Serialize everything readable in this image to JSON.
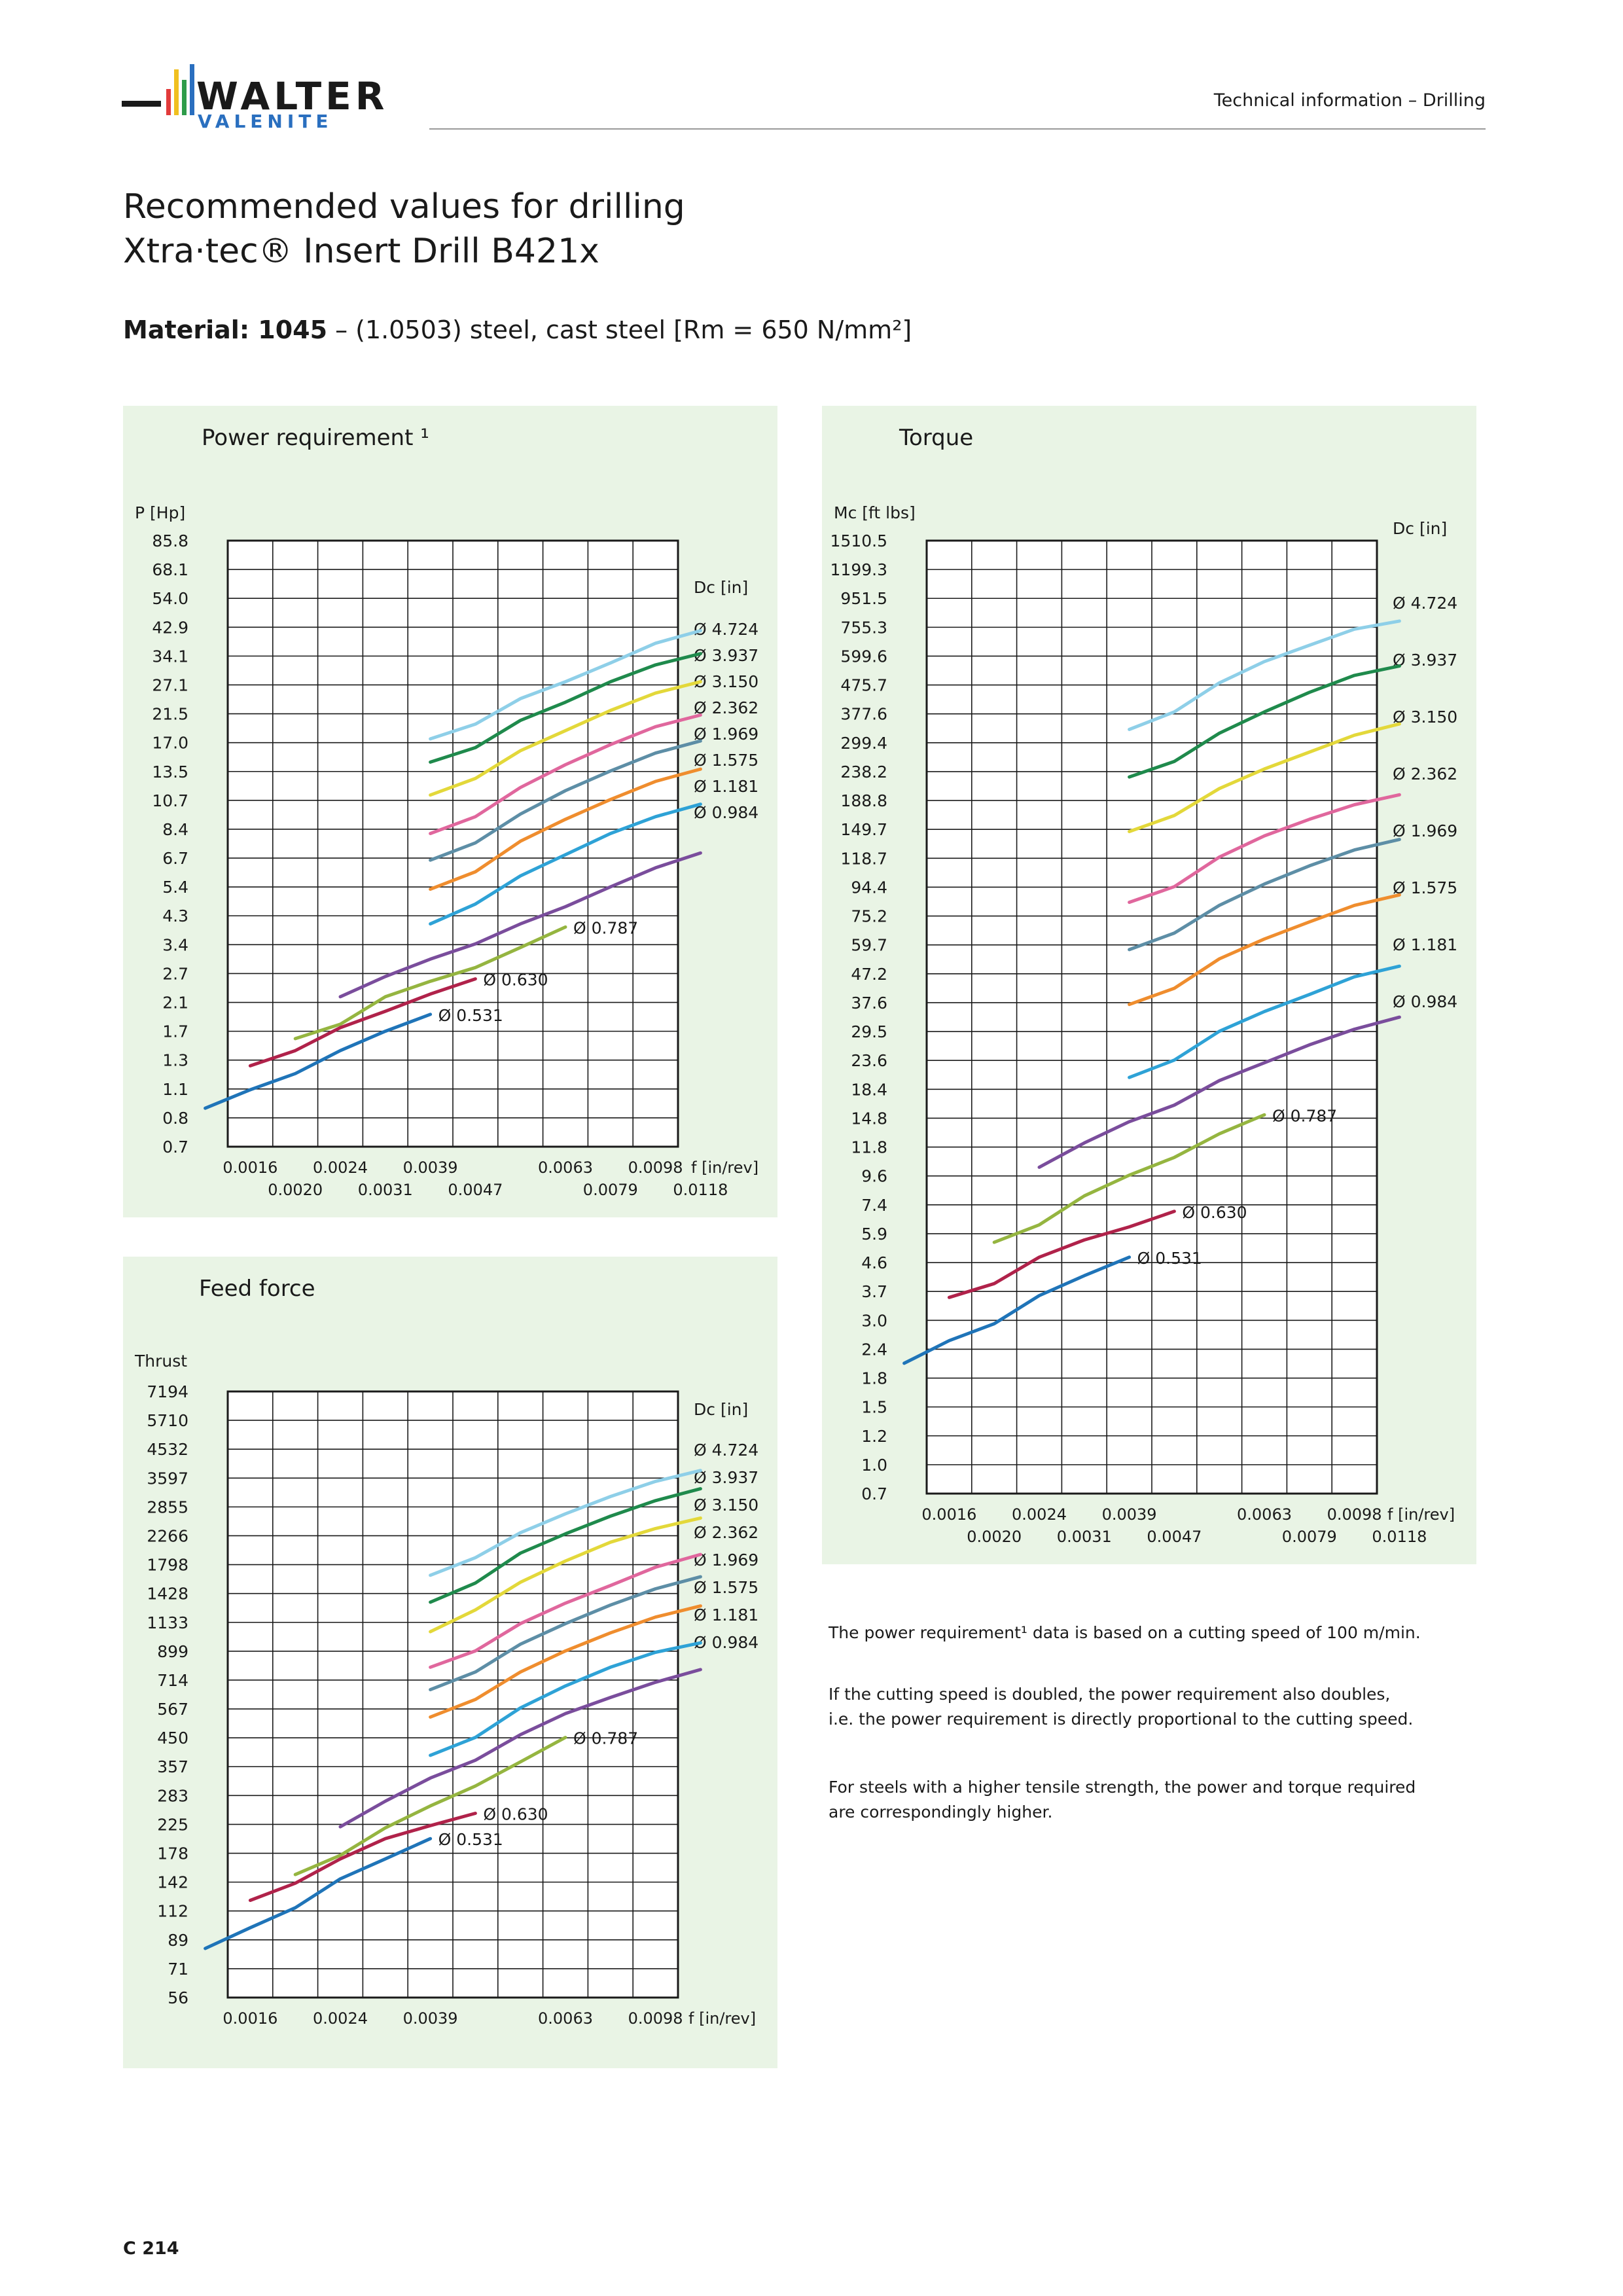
{
  "header": {
    "logo_primary": "WALTER",
    "logo_secondary": "VALENITE",
    "section_label": "Technical information – Drilling"
  },
  "title": {
    "line1": "Recommended values for drilling",
    "line2": "Xtra·tec® Insert Drill B421x"
  },
  "material": {
    "label": "Material: 1045",
    "description": " – (1.0503) steel, cast steel [Rm = 650 N/mm²]"
  },
  "colors": {
    "panel_background": "#e9f4e5",
    "logo_blue": "#2a6fbf",
    "d4724": "#8ecfe8",
    "d3937": "#1f8a4c",
    "d3150": "#e3d83a",
    "d2362": "#e0679d",
    "d1969": "#5d8ea6",
    "d1575": "#ef8d2e",
    "d1181": "#2ea2d6",
    "d0984": "#7a4d9c",
    "d0787": "#95b540",
    "d0630": "#b0224a",
    "d0531": "#1f74b8"
  },
  "chart_data": [
    {
      "type": "line",
      "title": "Power requirement ¹",
      "ylabel": "P [Hp]",
      "xlabel": "f [in/rev]",
      "legend_title": "Dc [in]",
      "y_scale": "log",
      "y_ticks": [
        "85.8",
        "68.1",
        "54.0",
        "42.9",
        "34.1",
        "27.1",
        "21.5",
        "17.0",
        "13.5",
        "10.7",
        "8.4",
        "6.7",
        "5.4",
        "4.3",
        "3.4",
        "2.7",
        "2.1",
        "1.7",
        "1.3",
        "1.1",
        "0.8",
        "0.7"
      ],
      "x_ticks_top": [
        "0.0016",
        "0.0024",
        "0.0039",
        "0.0063",
        "0.0098"
      ],
      "x_ticks_bottom": [
        "0.0020",
        "0.0031",
        "0.0047",
        "0.0079",
        "0.0118"
      ],
      "legend": [
        "Ø 4.724",
        "Ø 3.937",
        "Ø 3.150",
        "Ø 2.362",
        "Ø 1.969",
        "Ø 1.575",
        "Ø 1.181",
        "Ø 0.984"
      ],
      "series": [
        {
          "name": "Ø 4.724",
          "color_key": "d4724",
          "x": [
            "0.0039",
            "0.0047",
            "0.0055",
            "0.0063",
            "0.0079",
            "0.0098",
            "0.0118"
          ],
          "y": [
            17.8,
            20.0,
            24.5,
            28.0,
            32.5,
            38.0,
            42.0
          ]
        },
        {
          "name": "Ø 3.937",
          "color_key": "d3937",
          "x": [
            "0.0039",
            "0.0047",
            "0.0055",
            "0.0063",
            "0.0079",
            "0.0098",
            "0.0118"
          ],
          "y": [
            14.8,
            16.6,
            20.6,
            23.8,
            28.0,
            32.0,
            35.0
          ]
        },
        {
          "name": "Ø 3.150",
          "color_key": "d3150",
          "x": [
            "0.0039",
            "0.0047",
            "0.0055",
            "0.0063",
            "0.0079",
            "0.0098",
            "0.0118"
          ],
          "y": [
            11.4,
            13.0,
            16.2,
            19.0,
            22.3,
            25.6,
            28.0
          ]
        },
        {
          "name": "Ø 2.362",
          "color_key": "d2362",
          "x": [
            "0.0039",
            "0.0047",
            "0.0055",
            "0.0063",
            "0.0079",
            "0.0098",
            "0.0118"
          ],
          "y": [
            8.4,
            9.6,
            12.1,
            14.5,
            17.0,
            19.6,
            21.5
          ]
        },
        {
          "name": "Ø 1.969",
          "color_key": "d1969",
          "x": [
            "0.0039",
            "0.0047",
            "0.0055",
            "0.0063",
            "0.0079",
            "0.0098",
            "0.0118"
          ],
          "y": [
            6.8,
            7.8,
            9.8,
            11.8,
            13.8,
            15.9,
            17.5
          ]
        },
        {
          "name": "Ø 1.575",
          "color_key": "d1575",
          "x": [
            "0.0039",
            "0.0047",
            "0.0055",
            "0.0063",
            "0.0079",
            "0.0098",
            "0.0118"
          ],
          "y": [
            5.4,
            6.2,
            7.9,
            9.4,
            11.0,
            12.7,
            14.0
          ]
        },
        {
          "name": "Ø 1.181",
          "color_key": "d1181",
          "x": [
            "0.0039",
            "0.0047",
            "0.0055",
            "0.0063",
            "0.0079",
            "0.0098",
            "0.0118"
          ],
          "y": [
            4.1,
            4.8,
            6.0,
            7.1,
            8.4,
            9.6,
            10.6
          ]
        },
        {
          "name": "Ø 0.984",
          "color_key": "d0984",
          "x": [
            "0.0024",
            "0.0031",
            "0.0039",
            "0.0047",
            "0.0055",
            "0.0063",
            "0.0079",
            "0.0098",
            "0.0118"
          ],
          "y": [
            2.3,
            2.7,
            3.1,
            3.5,
            4.1,
            4.7,
            5.5,
            6.4,
            7.2
          ]
        },
        {
          "name": "Ø 0.787",
          "color_key": "d0787",
          "x": [
            "0.0020",
            "0.0024",
            "0.0031",
            "0.0039",
            "0.0047",
            "0.0055",
            "0.0063"
          ],
          "y": [
            1.65,
            1.85,
            2.3,
            2.6,
            2.9,
            3.4,
            4.0
          ]
        },
        {
          "name": "Ø 0.630",
          "color_key": "d0630",
          "x": [
            "0.0016",
            "0.0020",
            "0.0024",
            "0.0031",
            "0.0039",
            "0.0047"
          ],
          "y": [
            1.33,
            1.5,
            1.8,
            2.05,
            2.35,
            2.65
          ]
        },
        {
          "name": "Ø 0.531",
          "color_key": "d0531",
          "x": [
            "0.0012",
            "0.0016",
            "0.0020",
            "0.0024",
            "0.0031",
            "0.0039"
          ],
          "y": [
            0.95,
            1.1,
            1.25,
            1.5,
            1.75,
            2.0
          ]
        }
      ]
    },
    {
      "type": "line",
      "title": "Torque",
      "ylabel": "Mc [ft lbs]",
      "xlabel": "f [in/rev]",
      "legend_title": "Dc [in]",
      "y_scale": "log",
      "y_ticks": [
        "1510.5",
        "1199.3",
        "951.5",
        "755.3",
        "599.6",
        "475.7",
        "377.6",
        "299.4",
        "238.2",
        "188.8",
        "149.7",
        "118.7",
        "94.4",
        "75.2",
        "59.7",
        "47.2",
        "37.6",
        "29.5",
        "23.6",
        "18.4",
        "14.8",
        "11.8",
        "9.6",
        "7.4",
        "5.9",
        "4.6",
        "3.7",
        "3.0",
        "2.4",
        "1.8",
        "1.5",
        "1.2",
        "1.0",
        "0.7"
      ],
      "x_ticks_top": [
        "0.0016",
        "0.0024",
        "0.0039",
        "0.0063",
        "0.0098"
      ],
      "x_ticks_bottom": [
        "0.0020",
        "0.0031",
        "0.0047",
        "0.0079",
        "0.0118"
      ],
      "legend": [
        "Ø 4.724",
        "Ø 3.937",
        "Ø 3.150",
        "Ø 2.362",
        "Ø 1.969",
        "Ø 1.575",
        "Ø 1.181",
        "Ø 0.984"
      ],
      "series": [
        {
          "name": "Ø 4.724",
          "color_key": "d4724",
          "x": [
            "0.0039",
            "0.0047",
            "0.0055",
            "0.0063",
            "0.0079",
            "0.0098",
            "0.0118"
          ],
          "y": [
            330,
            380,
            480,
            570,
            650,
            740,
            790
          ]
        },
        {
          "name": "Ø 3.937",
          "color_key": "d3937",
          "x": [
            "0.0039",
            "0.0047",
            "0.0055",
            "0.0063",
            "0.0079",
            "0.0098",
            "0.0118"
          ],
          "y": [
            225,
            255,
            320,
            380,
            445,
            510,
            550
          ]
        },
        {
          "name": "Ø 3.150",
          "color_key": "d3150",
          "x": [
            "0.0039",
            "0.0047",
            "0.0055",
            "0.0063",
            "0.0079",
            "0.0098",
            "0.0118"
          ],
          "y": [
            145,
            165,
            205,
            240,
            275,
            315,
            345
          ]
        },
        {
          "name": "Ø 2.362",
          "color_key": "d2362",
          "x": [
            "0.0039",
            "0.0047",
            "0.0055",
            "0.0063",
            "0.0079",
            "0.0098",
            "0.0118"
          ],
          "y": [
            82,
            93,
            118,
            140,
            160,
            180,
            195
          ]
        },
        {
          "name": "Ø 1.969",
          "color_key": "d1969",
          "x": [
            "0.0039",
            "0.0047",
            "0.0055",
            "0.0063",
            "0.0079",
            "0.0098",
            "0.0118"
          ],
          "y": [
            56,
            64,
            80,
            95,
            110,
            125,
            136
          ]
        },
        {
          "name": "Ø 1.575",
          "color_key": "d1575",
          "x": [
            "0.0039",
            "0.0047",
            "0.0055",
            "0.0063",
            "0.0079",
            "0.0098",
            "0.0118"
          ],
          "y": [
            36,
            41,
            52,
            61,
            70,
            80,
            87
          ]
        },
        {
          "name": "Ø 1.181",
          "color_key": "d1181",
          "x": [
            "0.0039",
            "0.0047",
            "0.0055",
            "0.0063",
            "0.0079",
            "0.0098",
            "0.0118"
          ],
          "y": [
            20,
            23,
            29,
            34,
            39,
            45,
            49
          ]
        },
        {
          "name": "Ø 0.984",
          "color_key": "d0984",
          "x": [
            "0.0024",
            "0.0031",
            "0.0039",
            "0.0047",
            "0.0055",
            "0.0063",
            "0.0079",
            "0.0098",
            "0.0118"
          ],
          "y": [
            9.7,
            11.8,
            14.0,
            16.0,
            19.5,
            22.5,
            26.0,
            29.5,
            32.5
          ]
        },
        {
          "name": "Ø 0.787",
          "color_key": "d0787",
          "x": [
            "0.0020",
            "0.0024",
            "0.0031",
            "0.0039",
            "0.0047",
            "0.0055",
            "0.0063"
          ],
          "y": [
            5.3,
            6.1,
            7.7,
            9.1,
            10.5,
            12.7,
            14.8
          ]
        },
        {
          "name": "Ø 0.630",
          "color_key": "d0630",
          "x": [
            "0.0016",
            "0.0020",
            "0.0024",
            "0.0031",
            "0.0039",
            "0.0047"
          ],
          "y": [
            3.4,
            3.8,
            4.7,
            5.4,
            6.0,
            6.8
          ]
        },
        {
          "name": "Ø 0.531",
          "color_key": "d0531",
          "x": [
            "0.0012",
            "0.0016",
            "0.0020",
            "0.0024",
            "0.0031",
            "0.0039"
          ],
          "y": [
            2.0,
            2.4,
            2.75,
            3.45,
            4.05,
            4.7
          ]
        }
      ]
    },
    {
      "type": "line",
      "title": "Feed force",
      "ylabel": "Thrust",
      "xlabel": "f [in/rev]",
      "legend_title": "Dc [in]",
      "y_scale": "log",
      "y_ticks": [
        "7194",
        "5710",
        "4532",
        "3597",
        "2855",
        "2266",
        "1798",
        "1428",
        "1133",
        "899",
        "714",
        "567",
        "450",
        "357",
        "283",
        "225",
        "178",
        "142",
        "112",
        "89",
        "71",
        "56"
      ],
      "x_ticks_top": [
        "0.0016",
        "0.0024",
        "0.0039",
        "0.0063",
        "0.0098"
      ],
      "x_ticks_bottom": [],
      "legend": [
        "Ø 4.724",
        "Ø 3.937",
        "Ø 3.150",
        "Ø 2.362",
        "Ø 1.969",
        "Ø 1.575",
        "Ø 1.181",
        "Ø 0.984"
      ],
      "series": [
        {
          "name": "Ø 4.724",
          "color_key": "d4724",
          "x": [
            "0.0039",
            "0.0047",
            "0.0055",
            "0.0063",
            "0.0079",
            "0.0098",
            "0.0118"
          ],
          "y": [
            1650,
            1900,
            2320,
            2700,
            3100,
            3500,
            3820
          ]
        },
        {
          "name": "Ø 3.937",
          "color_key": "d3937",
          "x": [
            "0.0039",
            "0.0047",
            "0.0055",
            "0.0063",
            "0.0079",
            "0.0098",
            "0.0118"
          ],
          "y": [
            1330,
            1550,
            1970,
            2300,
            2650,
            3000,
            3300
          ]
        },
        {
          "name": "Ø 3.150",
          "color_key": "d3150",
          "x": [
            "0.0039",
            "0.0047",
            "0.0055",
            "0.0063",
            "0.0079",
            "0.0098",
            "0.0118"
          ],
          "y": [
            1050,
            1250,
            1560,
            1850,
            2150,
            2400,
            2610
          ]
        },
        {
          "name": "Ø 2.362",
          "color_key": "d2362",
          "x": [
            "0.0039",
            "0.0047",
            "0.0055",
            "0.0063",
            "0.0079",
            "0.0098",
            "0.0118"
          ],
          "y": [
            790,
            900,
            1120,
            1320,
            1520,
            1760,
            1950
          ]
        },
        {
          "name": "Ø 1.969",
          "color_key": "d1969",
          "x": [
            "0.0039",
            "0.0047",
            "0.0055",
            "0.0063",
            "0.0079",
            "0.0098",
            "0.0118"
          ],
          "y": [
            660,
            760,
            950,
            1120,
            1300,
            1480,
            1630
          ]
        },
        {
          "name": "Ø 1.575",
          "color_key": "d1575",
          "x": [
            "0.0039",
            "0.0047",
            "0.0055",
            "0.0063",
            "0.0079",
            "0.0098",
            "0.0118"
          ],
          "y": [
            530,
            610,
            760,
            900,
            1040,
            1180,
            1290
          ]
        },
        {
          "name": "Ø 1.181",
          "color_key": "d1181",
          "x": [
            "0.0039",
            "0.0047",
            "0.0055",
            "0.0063",
            "0.0079",
            "0.0098",
            "0.0118"
          ],
          "y": [
            390,
            450,
            570,
            680,
            790,
            890,
            960
          ]
        },
        {
          "name": "Ø 0.984",
          "color_key": "d0984",
          "x": [
            "0.0024",
            "0.0031",
            "0.0039",
            "0.0047",
            "0.0055",
            "0.0063",
            "0.0079",
            "0.0098",
            "0.0118"
          ],
          "y": [
            220,
            270,
            325,
            375,
            460,
            545,
            620,
            700,
            775
          ]
        },
        {
          "name": "Ø 0.787",
          "color_key": "d0787",
          "x": [
            "0.0020",
            "0.0024",
            "0.0031",
            "0.0039",
            "0.0047",
            "0.0055",
            "0.0063"
          ],
          "y": [
            150,
            175,
            218,
            260,
            305,
            370,
            450
          ]
        },
        {
          "name": "Ø 0.630",
          "color_key": "d0630",
          "x": [
            "0.0016",
            "0.0020",
            "0.0024",
            "0.0031",
            "0.0039",
            "0.0047"
          ],
          "y": [
            122,
            140,
            170,
            200,
            222,
            245
          ]
        },
        {
          "name": "Ø 0.531",
          "color_key": "d0531",
          "x": [
            "0.0012",
            "0.0016",
            "0.0020",
            "0.0024",
            "0.0031",
            "0.0039"
          ],
          "y": [
            83,
            98,
            115,
            145,
            170,
            200
          ]
        }
      ]
    }
  ],
  "notes": [
    "The power requirement¹ data is based on a cutting speed of 100 m/min.",
    "If the cutting speed is doubled, the power requirement also doubles,",
    "i.e. the power requirement is directly proportional to the cutting speed.",
    "For steels with a higher tensile strength, the power and torque required",
    "are correspondingly higher."
  ],
  "page_number": "C 214"
}
